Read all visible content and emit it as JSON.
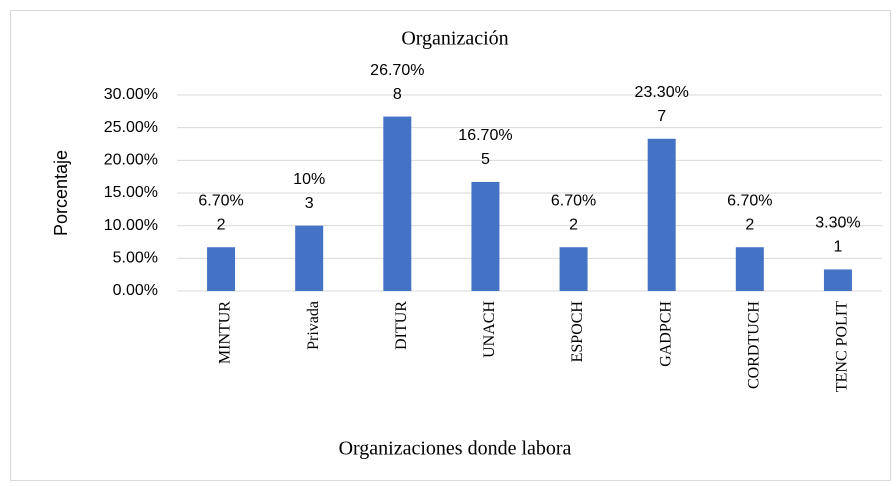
{
  "chart_data": {
    "type": "bar",
    "title": "Organización",
    "x_label": "Organizaciones donde labora",
    "y_label": "Porcentaje",
    "categories": [
      "MINTUR",
      "Privada",
      "DITUR",
      "UNACH",
      "ESPOCH",
      "GADPCH",
      "CORDTUCH",
      "TENC POLIT"
    ],
    "values": [
      6.7,
      10,
      26.7,
      16.7,
      6.7,
      23.3,
      6.7,
      3.3
    ],
    "value_labels": [
      "6.70%",
      "10%",
      "26.70%",
      "16.70%",
      "6.70%",
      "23.30%",
      "6.70%",
      "3.30%"
    ],
    "counts": [
      2,
      3,
      8,
      5,
      2,
      7,
      2,
      1
    ],
    "color": "#4472c4",
    "ylim": [
      0,
      30
    ],
    "yticks": [
      {
        "value": 0,
        "label": "0.00%"
      },
      {
        "value": 5,
        "label": "5.00%"
      },
      {
        "value": 10,
        "label": "10.00%"
      },
      {
        "value": 15,
        "label": "15.00%"
      },
      {
        "value": 20,
        "label": "20.00%"
      },
      {
        "value": 25,
        "label": "25.00%"
      },
      {
        "value": 30,
        "label": "30.00%"
      }
    ],
    "grid": true
  }
}
